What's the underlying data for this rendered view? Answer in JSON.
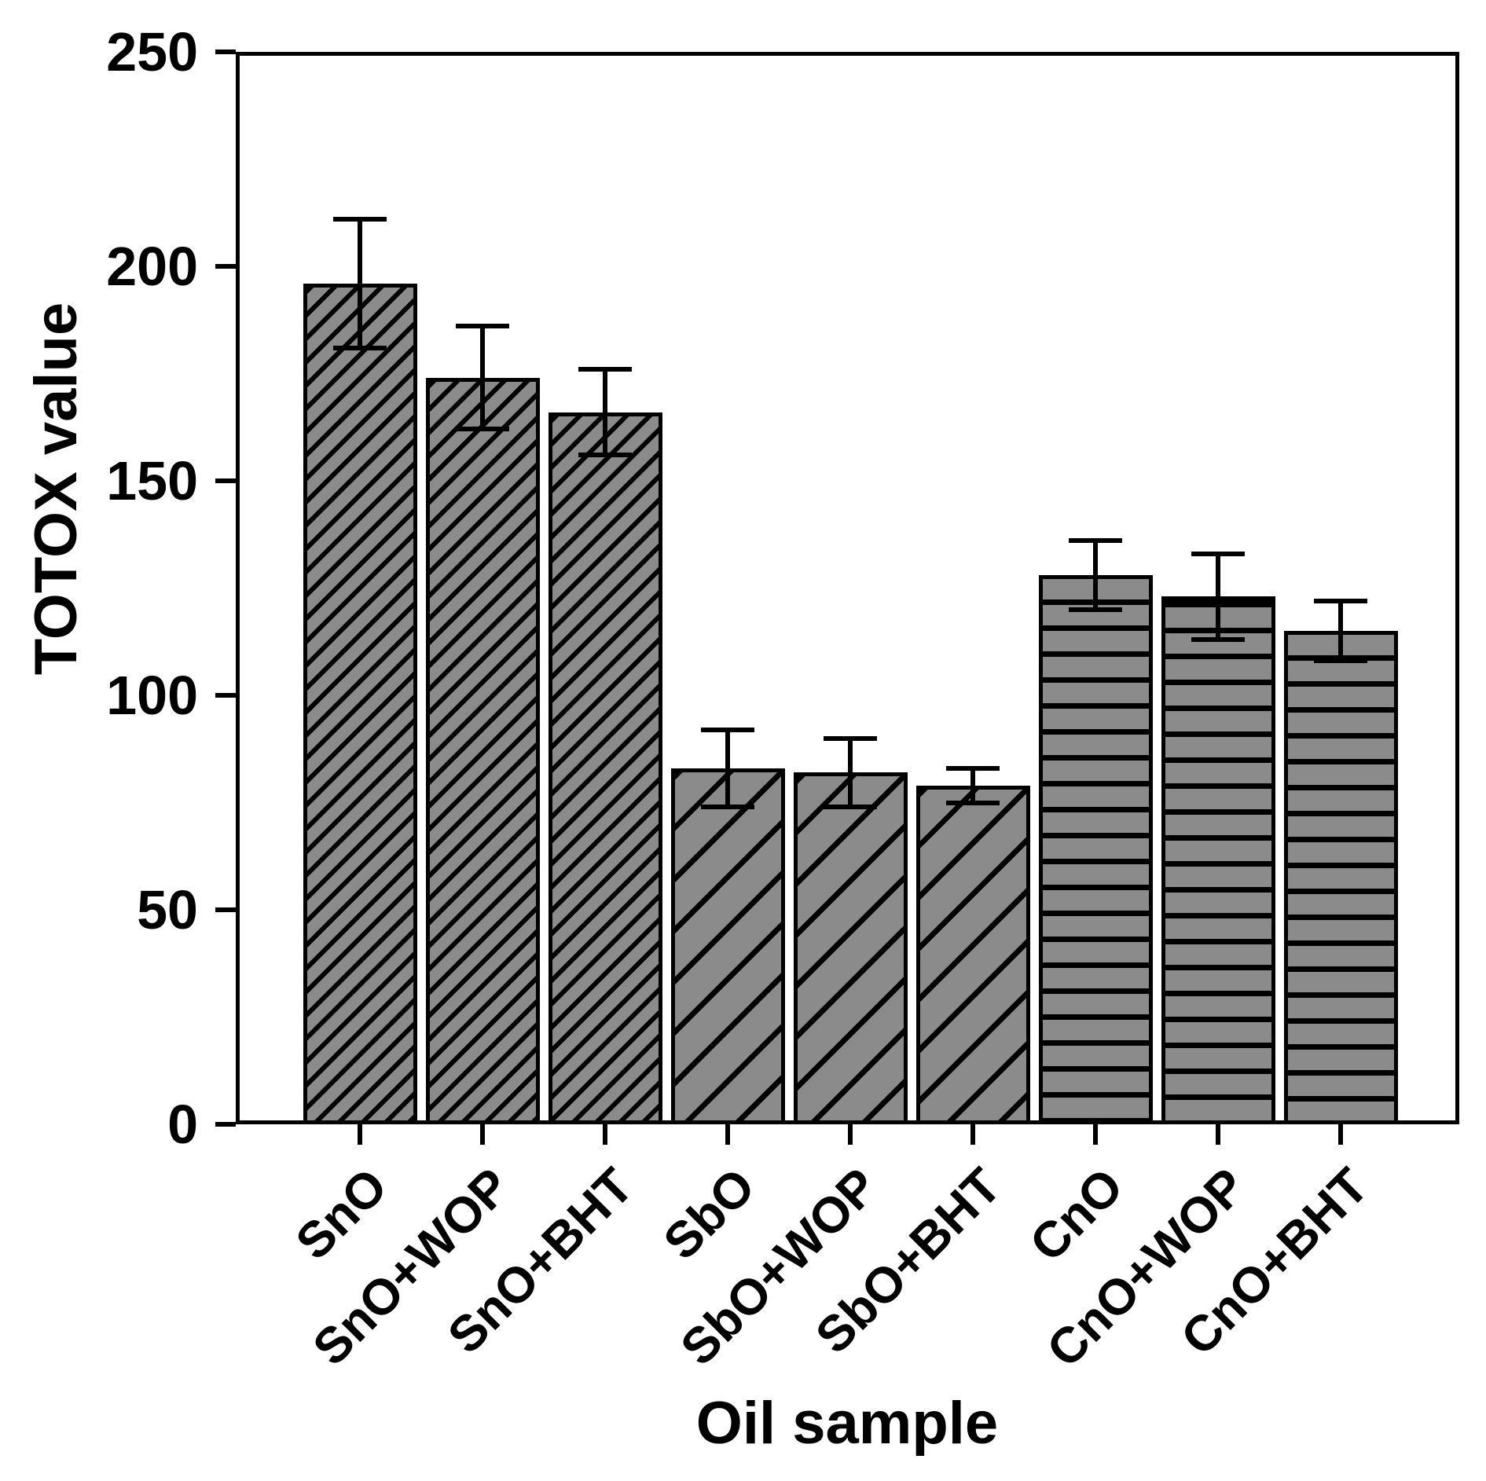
{
  "figure": {
    "background": "#ffffff",
    "text_color": "#000000",
    "bar_fill": "#8b8b8b",
    "bar_border": "#000000"
  },
  "chart_data": {
    "type": "bar",
    "title": "",
    "xlabel": "Oil sample",
    "ylabel": "TOTOX value",
    "ylim": [
      0,
      250
    ],
    "yticks": [
      0,
      50,
      100,
      150,
      200,
      250
    ],
    "grid": false,
    "legend": false,
    "categories": [
      "SnO",
      "SnO+WOP",
      "SnO+BHT",
      "SbO",
      "SbO+WOP",
      "SbO+BHT",
      "CnO",
      "CnO+WOP",
      "CnO+BHT"
    ],
    "values": [
      196,
      174,
      166,
      83,
      82,
      79,
      128,
      123,
      115
    ],
    "errors": [
      15,
      12,
      10,
      9,
      8,
      4,
      8,
      10,
      7
    ],
    "error_bar_style": "plus-minus-caps",
    "bar_patterns": [
      "diagonal-dense",
      "diagonal-dense",
      "diagonal-dense",
      "diagonal-sparse",
      "diagonal-sparse",
      "diagonal-sparse",
      "horizontal-lines",
      "horizontal-lines",
      "horizontal-lines"
    ],
    "pattern_legend": [
      {
        "pattern": "diagonal-dense",
        "bars": [
          "SnO",
          "SnO+WOP",
          "SnO+BHT"
        ]
      },
      {
        "pattern": "diagonal-sparse",
        "bars": [
          "SbO",
          "SbO+WOP",
          "SbO+BHT"
        ]
      },
      {
        "pattern": "horizontal-lines",
        "bars": [
          "CnO",
          "CnO+WOP",
          "CnO+BHT"
        ]
      }
    ],
    "thick_top_bars": [
      "CnO+WOP"
    ]
  }
}
